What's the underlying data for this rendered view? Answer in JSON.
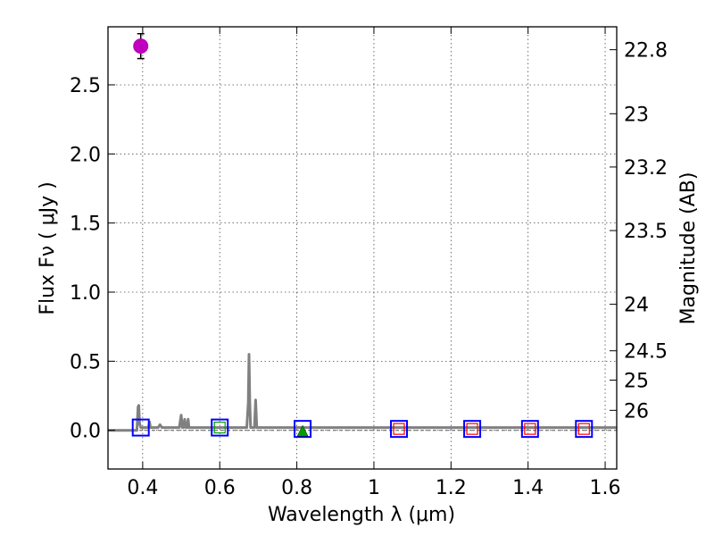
{
  "chart_data": {
    "type": "scatter",
    "xlabel": "Wavelength  λ (μm)",
    "ylabel": "Flux  Fν  ( μJy )",
    "ylabel_right": "Magnitude (AB)",
    "xlim": [
      0.31,
      1.63
    ],
    "ylim": [
      -0.28,
      2.92
    ],
    "x_ticks": [
      0.4,
      0.6,
      0.8,
      1.0,
      1.2,
      1.4,
      1.6
    ],
    "x_tick_labels": [
      "0.4",
      "0.6",
      "0.8",
      "1",
      "1.2",
      "1.4",
      "1.6"
    ],
    "y_ticks": [
      0.0,
      0.5,
      1.0,
      1.5,
      2.0,
      2.5
    ],
    "y_tick_labels": [
      "0.0",
      "0.5",
      "1.0",
      "1.5",
      "2.0",
      "2.5"
    ],
    "mag_ticks": [
      22.8,
      23,
      23.2,
      23.5,
      24,
      24.5,
      25,
      26
    ],
    "mag_tick_labels": [
      "22.8",
      "23",
      "23.2",
      "23.5",
      "24",
      "24.5",
      "25",
      "26"
    ],
    "grid": true,
    "colors": {
      "detection": "#bf00bf",
      "model_box": "#0000ff",
      "upper_limit_box": "#ff0000",
      "green_marker": "#00a000",
      "spectrum": "#808080"
    },
    "detections": [
      {
        "x": 0.395,
        "y": 2.78,
        "yerr": 0.09
      }
    ],
    "model_fluxes": [
      {
        "x": 0.395,
        "y": 0.02
      },
      {
        "x": 0.6,
        "y": 0.02
      },
      {
        "x": 0.815,
        "y": 0.01
      },
      {
        "x": 1.065,
        "y": 0.01
      },
      {
        "x": 1.255,
        "y": 0.01
      },
      {
        "x": 1.405,
        "y": 0.01
      },
      {
        "x": 1.545,
        "y": 0.01
      }
    ],
    "limit_markers": [
      {
        "x": 0.6,
        "y": 0.02,
        "color": "#00a000"
      },
      {
        "x": 1.065,
        "y": 0.01,
        "color": "#ff0000"
      },
      {
        "x": 1.255,
        "y": 0.01,
        "color": "#ff0000"
      },
      {
        "x": 1.405,
        "y": 0.01,
        "color": "#ff0000"
      },
      {
        "x": 1.545,
        "y": 0.01,
        "color": "#ff0000"
      }
    ],
    "green_triangle": {
      "x": 0.815,
      "y": -0.01
    },
    "spectrum": {
      "x": [
        0.31,
        0.385,
        0.388,
        0.39,
        0.392,
        0.395,
        0.415,
        0.418,
        0.42,
        0.44,
        0.445,
        0.45,
        0.495,
        0.5,
        0.503,
        0.506,
        0.509,
        0.512,
        0.515,
        0.518,
        0.52,
        0.67,
        0.674,
        0.676,
        0.678,
        0.68,
        0.684,
        0.69,
        0.693,
        0.696,
        0.7,
        1.63
      ],
      "y": [
        0.0,
        0.0,
        0.17,
        0.18,
        0.05,
        0.02,
        0.02,
        0.06,
        0.02,
        0.02,
        0.04,
        0.02,
        0.02,
        0.11,
        0.02,
        0.02,
        0.08,
        0.02,
        0.02,
        0.08,
        0.02,
        0.02,
        0.2,
        0.55,
        0.2,
        0.02,
        0.02,
        0.02,
        0.22,
        0.02,
        0.02,
        0.02
      ]
    }
  }
}
